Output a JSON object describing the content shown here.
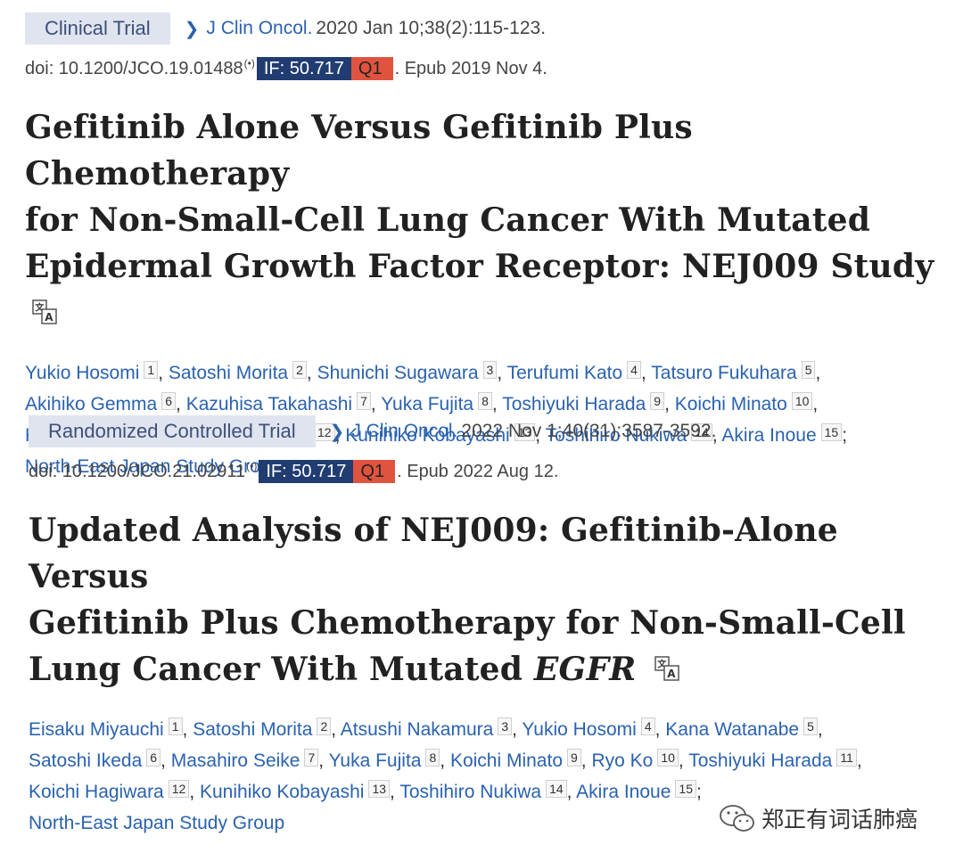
{
  "articles": [
    {
      "type_badge": "Clinical Trial",
      "journal": "J Clin Oncol.",
      "citation": "2020 Jan 10;38(2):115-123.",
      "doi": "doi: 10.1200/JCO.19.01488",
      "impact_factor": "IF: 50.717",
      "quartile": "Q1",
      "epub": ". Epub 2019 Nov 4.",
      "title_lines": [
        "Gefitinib Alone Versus Gefitinib Plus Chemotherapy",
        "for Non-Small-Cell Lung Cancer With Mutated",
        "Epidermal Growth Factor Receptor: NEJ009 Study"
      ],
      "authors": [
        {
          "name": "Yukio Hosomi",
          "num": "1"
        },
        {
          "name": "Satoshi Morita",
          "num": "2"
        },
        {
          "name": "Shunichi Sugawara",
          "num": "3"
        },
        {
          "name": "Terufumi Kato",
          "num": "4"
        },
        {
          "name": "Tatsuro Fukuhara",
          "num": "5"
        },
        {
          "name": "Akihiko Gemma",
          "num": "6"
        },
        {
          "name": "Kazuhisa Takahashi",
          "num": "7"
        },
        {
          "name": "Yuka Fujita",
          "num": "8"
        },
        {
          "name": "Toshiyuki Harada",
          "num": "9"
        },
        {
          "name": "Koichi Minato",
          "num": "10"
        },
        {
          "name": "Kei Takamura",
          "num": "11"
        },
        {
          "name": "Koichi Hagiwara",
          "num": "12"
        },
        {
          "name": "Kunihiko Kobayashi",
          "num": "13"
        },
        {
          "name": "Toshihiro Nukiwa",
          "num": "14"
        },
        {
          "name": "Akira Inoue",
          "num": "15"
        }
      ],
      "group": "North-East Japan Study Group"
    },
    {
      "type_badge": "Randomized Controlled Trial",
      "journal": "J Clin Oncol.",
      "citation": "2022 Nov 1;40(31):3587-3592.",
      "doi": "doi: 10.1200/JCO.21.02911",
      "impact_factor": "IF: 50.717",
      "quartile": "Q1",
      "epub": ". Epub 2022 Aug 12.",
      "title_lines": [
        "Updated Analysis of NEJ009: Gefitinib-Alone Versus",
        "Gefitinib Plus Chemotherapy for Non-Small-Cell",
        "Lung Cancer With Mutated "
      ],
      "title_italic": "EGFR",
      "authors": [
        {
          "name": "Eisaku Miyauchi",
          "num": "1"
        },
        {
          "name": "Satoshi Morita",
          "num": "2"
        },
        {
          "name": "Atsushi Nakamura",
          "num": "3"
        },
        {
          "name": "Yukio Hosomi",
          "num": "4"
        },
        {
          "name": "Kana Watanabe",
          "num": "5"
        },
        {
          "name": "Satoshi Ikeda",
          "num": "6"
        },
        {
          "name": "Masahiro Seike",
          "num": "7"
        },
        {
          "name": "Yuka Fujita",
          "num": "8"
        },
        {
          "name": "Koichi Minato",
          "num": "9"
        },
        {
          "name": "Ryo Ko",
          "num": "10"
        },
        {
          "name": "Toshiyuki Harada",
          "num": "11"
        },
        {
          "name": "Koichi Hagiwara",
          "num": "12"
        },
        {
          "name": "Kunihiko Kobayashi",
          "num": "13"
        },
        {
          "name": "Toshihiro Nukiwa",
          "num": "14"
        },
        {
          "name": "Akira Inoue",
          "num": "15"
        }
      ],
      "group": "North-East Japan Study Group"
    }
  ],
  "watermark": {
    "text": "郑正有词话肺癌",
    "icon": "wechat-icon"
  },
  "colors": {
    "link": "#2a62b0",
    "if_bg": "#203c71",
    "q_bg": "#e0543f",
    "badge_bg": "#dfe4ef"
  }
}
